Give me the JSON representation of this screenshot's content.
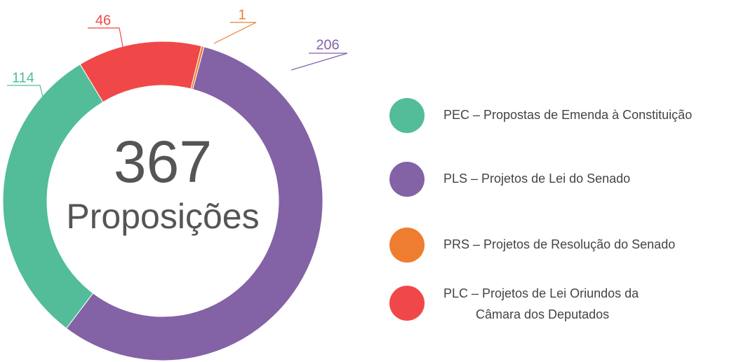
{
  "chart_data": {
    "type": "donut",
    "total": 367,
    "center_label": "Proposições",
    "series": [
      {
        "name": "PEC – Propostas de Emenda à Constituição",
        "color": "#52bd98",
        "values": [
          114
        ]
      },
      {
        "name": "PLS – Projetos de Lei do Senado",
        "color": "#8462a6",
        "values": [
          206
        ]
      },
      {
        "name": "PRS – Projetos de Resolução do Senado",
        "color": "#ee7d30",
        "values": [
          1
        ]
      },
      {
        "name": "PLC – Projetos de Lei Oriundos da\nCâmara dos Deputados",
        "color": "#f04848",
        "values": [
          46
        ]
      }
    ]
  }
}
